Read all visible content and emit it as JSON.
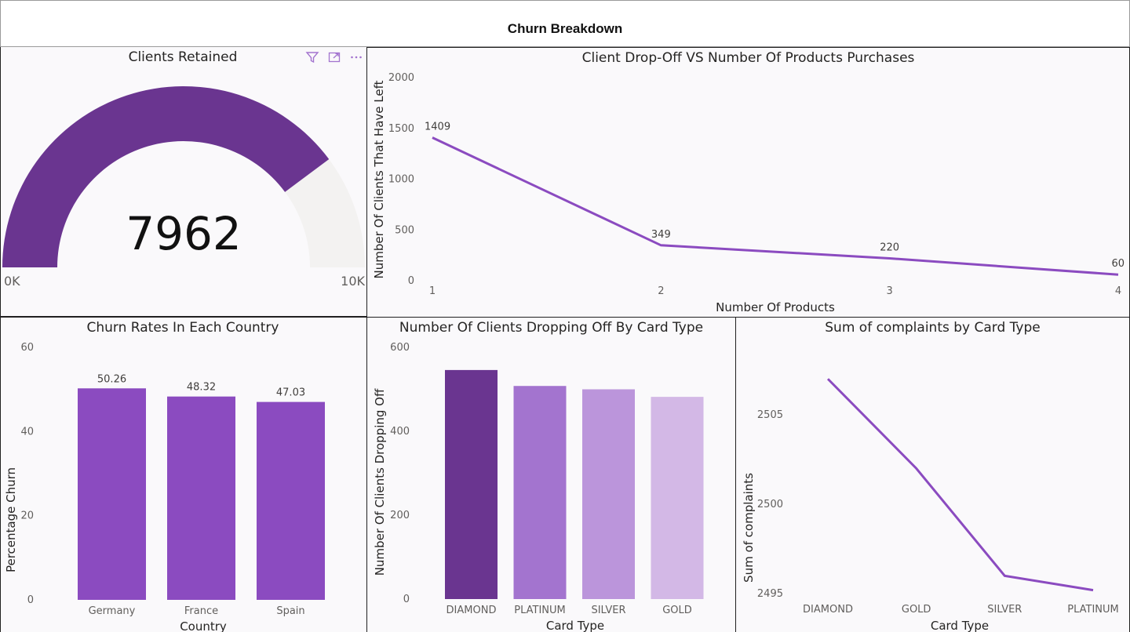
{
  "header": {
    "title": "Churn Breakdown"
  },
  "gauge_panel": {
    "title": "Clients Retained",
    "value_label": "7962",
    "value": 7962,
    "min_label": "0K",
    "max_label": "10K",
    "min": 0,
    "max": 10000,
    "icons": [
      "filter-icon",
      "focus-mode-icon",
      "more-options-icon"
    ]
  },
  "colors": {
    "purple_dark": "#6a3590",
    "purple": "#8b4bc0",
    "purple_mid": "#a374cf",
    "purple_light": "#bb95db",
    "purple_pale": "#d3b8e6",
    "track": "#f3f2f1"
  },
  "chart_data": [
    {
      "id": "dropoff",
      "type": "line",
      "title": "Client Drop-Off VS Number Of Products Purchases",
      "xlabel": "Number Of Products",
      "ylabel": "Number Of Clients That Have Left",
      "x": [
        "1",
        "2",
        "3",
        "4"
      ],
      "values": [
        1409,
        349,
        220,
        60
      ],
      "ylim": [
        0,
        2000
      ],
      "yticks": [
        "0",
        "500",
        "1000",
        "1500",
        "2000"
      ]
    },
    {
      "id": "country",
      "type": "bar",
      "title": "Churn Rates In Each Country",
      "xlabel": "Country",
      "ylabel": "Percentage Churn",
      "categories": [
        "Germany",
        "France",
        "Spain"
      ],
      "values": [
        50.26,
        48.32,
        47.03
      ],
      "labels": [
        "50.26",
        "48.32",
        "47.03"
      ],
      "ylim": [
        0,
        60
      ],
      "yticks": [
        "0",
        "20",
        "40",
        "60"
      ]
    },
    {
      "id": "cardtype",
      "type": "bar",
      "title": "Number Of Clients Dropping Off By Card Type",
      "xlabel": "Card Type",
      "ylabel": "Number Of Clients Dropping Off",
      "categories": [
        "DIAMOND",
        "PLATINUM",
        "SILVER",
        "GOLD"
      ],
      "values": [
        546,
        508,
        500,
        482
      ],
      "ylim": [
        0,
        600
      ],
      "yticks": [
        "0",
        "200",
        "400",
        "600"
      ]
    },
    {
      "id": "complaints",
      "type": "line",
      "title": "Sum of complaints by Card Type",
      "xlabel": "Card Type",
      "ylabel": "Sum of complaints",
      "x": [
        "DIAMOND",
        "GOLD",
        "SILVER",
        "PLATINUM"
      ],
      "values": [
        2507,
        2502,
        2496,
        2495.2
      ],
      "ylim": [
        2494,
        2508.5
      ],
      "yticks": [
        "2495",
        "2500",
        "2505"
      ]
    }
  ]
}
